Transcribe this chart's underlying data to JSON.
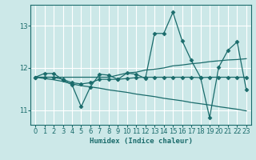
{
  "xlabel": "Humidex (Indice chaleur)",
  "background_color": "#cce8e8",
  "grid_color": "#ffffff",
  "line_color": "#1a6b6b",
  "xlim": [
    -0.5,
    23.5
  ],
  "ylim": [
    10.65,
    13.5
  ],
  "yticks": [
    11,
    12,
    13
  ],
  "xticks": [
    0,
    1,
    2,
    3,
    4,
    5,
    6,
    7,
    8,
    9,
    10,
    11,
    12,
    13,
    14,
    15,
    16,
    17,
    18,
    19,
    20,
    21,
    22,
    23
  ],
  "series1_x": [
    0,
    1,
    2,
    3,
    4,
    5,
    6,
    7,
    8,
    9,
    10,
    11,
    12,
    13,
    14,
    15,
    16,
    17,
    18,
    19,
    20,
    21,
    22,
    23
  ],
  "series1_y": [
    11.78,
    11.87,
    11.87,
    11.72,
    11.6,
    11.08,
    11.55,
    11.85,
    11.83,
    11.73,
    11.88,
    11.85,
    11.75,
    12.82,
    12.82,
    13.32,
    12.65,
    12.18,
    11.78,
    10.82,
    12.02,
    12.42,
    12.62,
    11.48
  ],
  "series2_x": [
    0,
    1,
    2,
    3,
    4,
    5,
    6,
    7,
    8,
    9,
    10,
    11,
    12,
    13,
    14,
    15,
    16,
    17,
    18,
    19,
    20,
    21,
    22,
    23
  ],
  "series2_y": [
    11.78,
    11.78,
    11.78,
    11.78,
    11.78,
    11.78,
    11.78,
    11.78,
    11.78,
    11.83,
    11.88,
    11.9,
    11.95,
    11.97,
    12.0,
    12.05,
    12.07,
    12.1,
    12.12,
    12.15,
    12.17,
    12.19,
    12.2,
    12.22
  ],
  "series3_x": [
    0,
    1,
    2,
    3,
    4,
    5,
    6,
    7,
    8,
    9,
    10,
    11,
    12,
    13,
    14,
    15,
    16,
    17,
    18,
    19,
    20,
    21,
    22,
    23
  ],
  "series3_y": [
    11.78,
    11.75,
    11.72,
    11.68,
    11.62,
    11.58,
    11.55,
    11.52,
    11.48,
    11.45,
    11.42,
    11.38,
    11.35,
    11.32,
    11.28,
    11.25,
    11.22,
    11.18,
    11.15,
    11.12,
    11.08,
    11.05,
    11.02,
    10.98
  ],
  "series4_x": [
    0,
    1,
    2,
    3,
    4,
    5,
    6,
    7,
    8,
    9,
    10,
    11,
    12,
    13,
    14,
    15,
    16,
    17,
    18,
    19,
    20,
    21,
    22,
    23
  ],
  "series4_y": [
    11.78,
    11.78,
    11.78,
    11.73,
    11.65,
    11.62,
    11.65,
    11.73,
    11.73,
    11.73,
    11.75,
    11.77,
    11.78,
    11.78,
    11.78,
    11.78,
    11.78,
    11.78,
    11.77,
    11.78,
    11.78,
    11.78,
    11.78,
    11.78
  ]
}
